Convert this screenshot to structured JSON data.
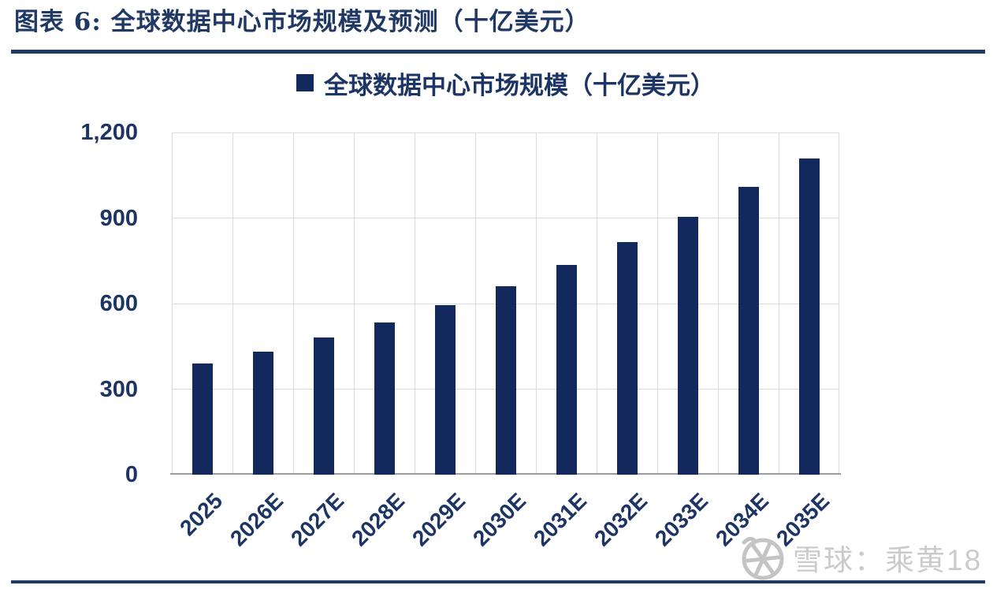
{
  "page": {
    "title": "图表 6: 全球数据中心市场规模及预测（十亿美元）",
    "watermark": "雪球：乘黄18",
    "colors": {
      "title_navy": "#1F3864",
      "text_navy": "#1C3564",
      "bar_navy": "#13285C",
      "gridline_gray": "#DBDBDB",
      "axis_gray": "#9C9C9C",
      "watermark_gray": "#CBCBCB"
    }
  },
  "chart_data": {
    "type": "bar",
    "title": "全球数据中心市场规模（十亿美元）",
    "legend_label": "全球数据中心市场规模（十亿美元）",
    "legend_position": "top-center",
    "categories": [
      "2025",
      "2026E",
      "2027E",
      "2028E",
      "2029E",
      "2030E",
      "2031E",
      "2032E",
      "2033E",
      "2034E",
      "2035E"
    ],
    "values": [
      390,
      430,
      480,
      535,
      595,
      660,
      735,
      815,
      905,
      1010,
      1110
    ],
    "xlabel": "",
    "ylabel": "",
    "ylim": [
      0,
      1200
    ],
    "yticks": [
      0,
      300,
      600,
      900,
      1200
    ],
    "ytick_labels": [
      "0",
      "300",
      "600",
      "900",
      "1,200"
    ],
    "grid": "both",
    "x_label_rotation_deg": -45
  }
}
